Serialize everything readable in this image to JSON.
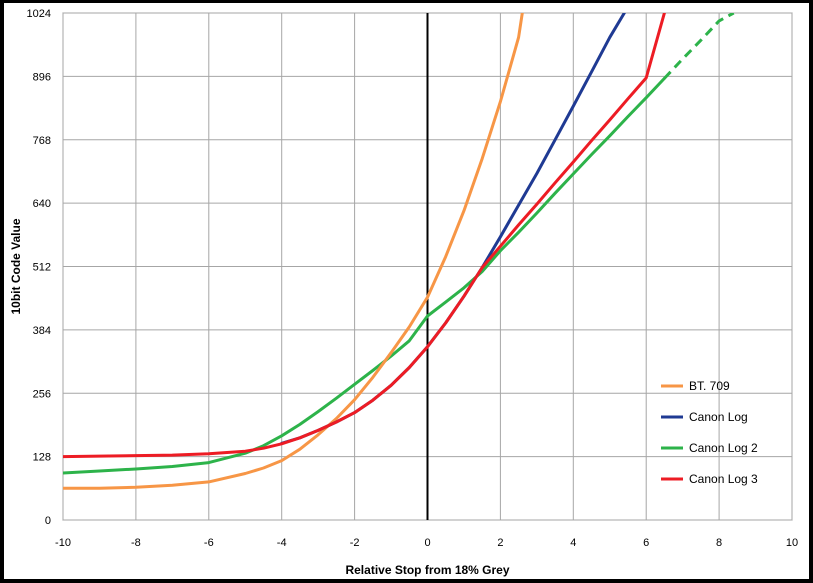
{
  "chart_data": {
    "type": "line",
    "title": "",
    "xlabel": "Relative Stop from 18% Grey",
    "ylabel": "10bit Code Value",
    "xlim": [
      -10,
      10
    ],
    "ylim": [
      0,
      1024
    ],
    "xticks": [
      -10,
      -8,
      -6,
      -4,
      -2,
      0,
      2,
      4,
      6,
      8,
      10
    ],
    "yticks": [
      0,
      128,
      256,
      384,
      512,
      640,
      768,
      896,
      1024
    ],
    "grid": true,
    "legend_position": "bottom-right",
    "vertical_reference_line_x": 0,
    "series": [
      {
        "name": "BT. 709",
        "color": "#f79646",
        "x": [
          -10,
          -9,
          -8,
          -7,
          -6,
          -5,
          -4.5,
          -4,
          -3.5,
          -3,
          -2.5,
          -2,
          -1.5,
          -1,
          -0.5,
          0,
          0.5,
          1,
          1.5,
          2,
          2.5,
          2.6
        ],
        "y": [
          64,
          64,
          66,
          70,
          77,
          94,
          105,
          120,
          143,
          172,
          205,
          243,
          288,
          338,
          390,
          450,
          532,
          625,
          730,
          845,
          975,
          1024
        ]
      },
      {
        "name": "Canon Log",
        "color": "#1f3a93",
        "x": [
          -4,
          -3.5,
          -3,
          -2.5,
          -2,
          -1.5,
          -1,
          -0.5,
          0,
          0.5,
          1,
          1.5,
          2,
          2.5,
          3,
          3.5,
          4,
          4.5,
          5,
          5.4
        ],
        "y": [
          155,
          166,
          181,
          198,
          217,
          242,
          272,
          308,
          350,
          398,
          452,
          510,
          572,
          636,
          700,
          768,
          836,
          905,
          975,
          1024
        ]
      },
      {
        "name": "Canon Log 2",
        "color": "#2db34a",
        "x": [
          -10,
          -9,
          -8,
          -7,
          -6,
          -5,
          -4.5,
          -4,
          -3.5,
          -3,
          -2.5,
          -2,
          -1.5,
          -1,
          -0.5,
          0,
          0.5,
          1,
          1.5,
          2,
          2.5,
          3,
          3.5,
          4,
          4.5,
          5,
          5.5,
          6,
          6.5
        ],
        "y": [
          95,
          99,
          103,
          108,
          116,
          135,
          150,
          170,
          193,
          219,
          246,
          274,
          302,
          331,
          362,
          412,
          440,
          469,
          502,
          544,
          581,
          620,
          660,
          699,
          738,
          776,
          815,
          853,
          892
        ]
      },
      {
        "name": "Canon Log 3",
        "color": "#ed1c24",
        "x": [
          -10,
          -9,
          -8,
          -7,
          -6,
          -5,
          -4.5,
          -4,
          -3.5,
          -3,
          -2.5,
          -2,
          -1.5,
          -1,
          -0.5,
          0,
          0.5,
          1,
          1.5,
          2,
          2.5,
          3,
          3.5,
          4,
          4.5,
          5,
          5.5,
          6,
          6.5
        ],
        "y": [
          128,
          129,
          130,
          131,
          134,
          139,
          145,
          154,
          166,
          181,
          198,
          217,
          242,
          272,
          308,
          350,
          398,
          452,
          510,
          553,
          596,
          638,
          681,
          723,
          766,
          808,
          851,
          893,
          1024
        ]
      }
    ],
    "extension": {
      "series": "Canon Log 2",
      "style": "dashed",
      "x": [
        6.5,
        7,
        7.5,
        8,
        8.4
      ],
      "y": [
        892,
        931,
        969,
        1008,
        1024
      ]
    }
  }
}
